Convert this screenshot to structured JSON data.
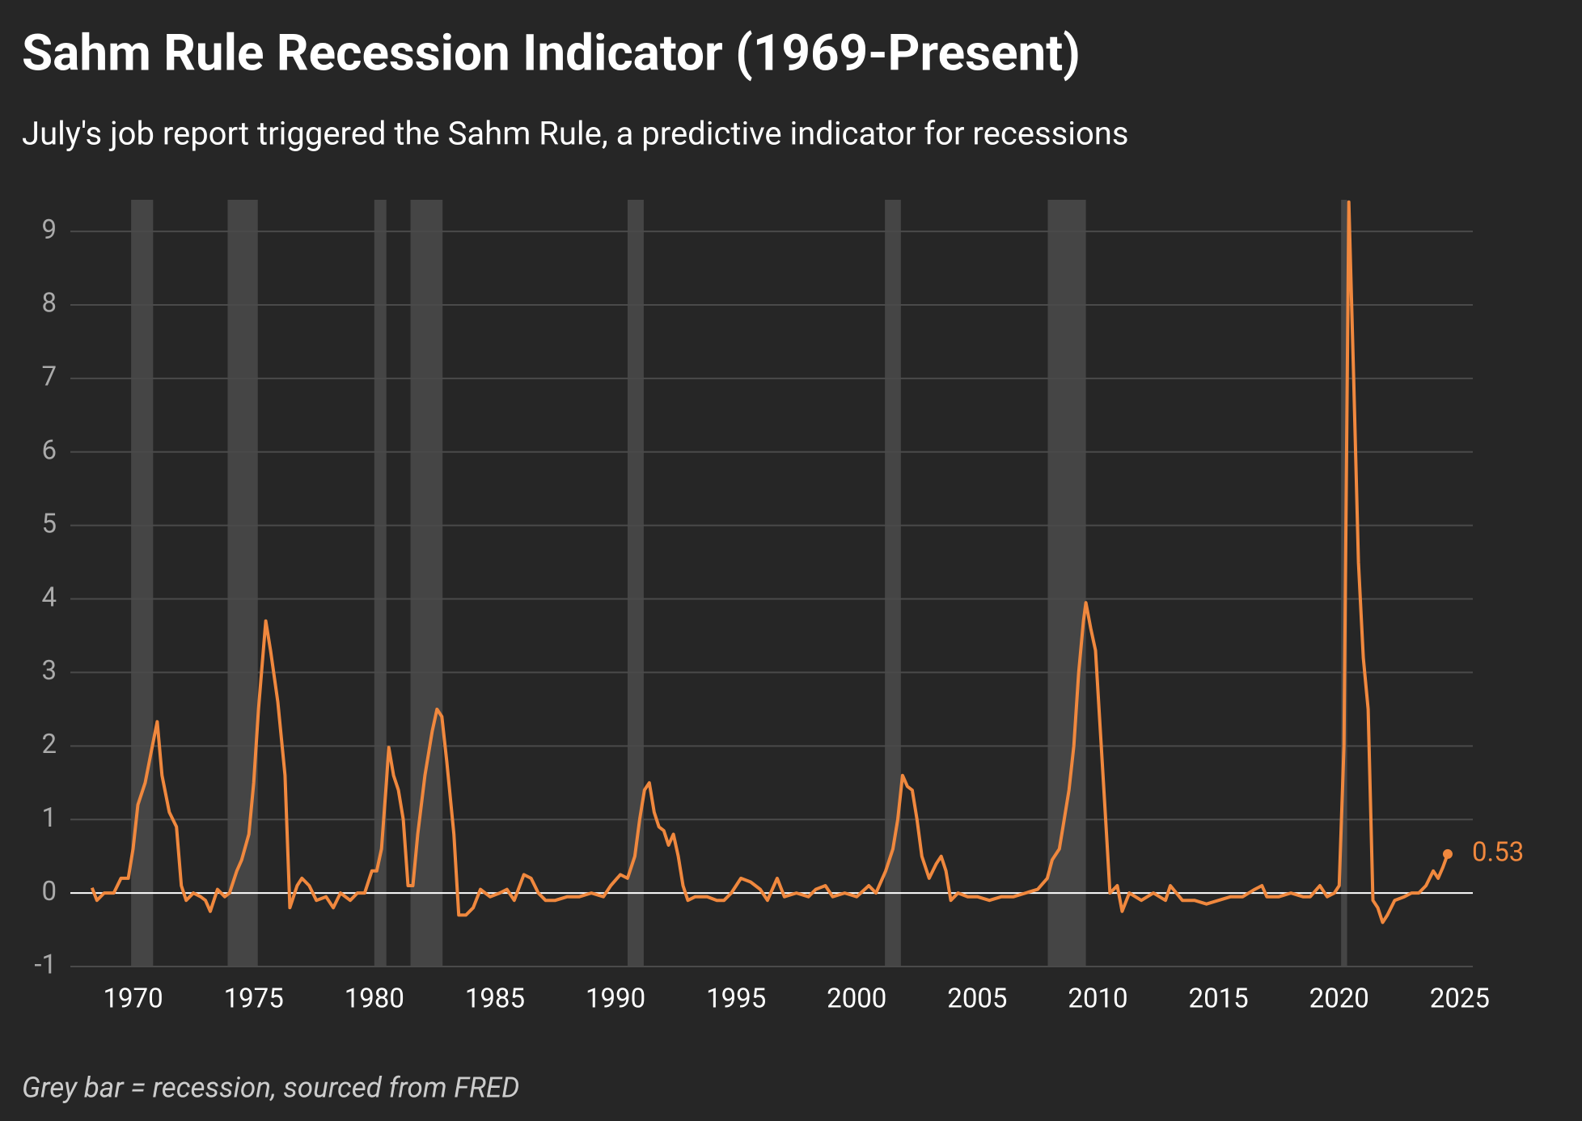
{
  "chart_data": {
    "type": "line",
    "title": "Sahm Rule Recession Indicator (1969-Present)",
    "subtitle": "July's job report triggered the Sahm Rule, a predictive indicator for recessions",
    "note": "Grey bar = recession, sourced from FRED",
    "x": [
      1968.3,
      1968.5,
      1968.8,
      1969.2,
      1969.5,
      1969.8,
      1970.0,
      1970.2,
      1970.5,
      1970.8,
      1971.0,
      1971.2,
      1971.5,
      1971.8,
      1972.0,
      1972.2,
      1972.5,
      1972.8,
      1973.0,
      1973.2,
      1973.5,
      1973.8,
      1974.0,
      1974.3,
      1974.5,
      1974.8,
      1975.0,
      1975.2,
      1975.4,
      1975.5,
      1975.7,
      1976.0,
      1976.3,
      1976.5,
      1976.8,
      1977.0,
      1977.3,
      1977.6,
      1978.0,
      1978.3,
      1978.6,
      1979.0,
      1979.3,
      1979.6,
      1979.9,
      1980.1,
      1980.3,
      1980.5,
      1980.6,
      1980.8,
      1981.0,
      1981.2,
      1981.4,
      1981.6,
      1981.8,
      1982.1,
      1982.4,
      1982.6,
      1982.8,
      1983.0,
      1983.3,
      1983.5,
      1983.8,
      1984.1,
      1984.4,
      1984.8,
      1985.2,
      1985.5,
      1985.8,
      1986.2,
      1986.5,
      1986.8,
      1987.1,
      1987.5,
      1988.0,
      1988.5,
      1989.0,
      1989.5,
      1989.8,
      1990.2,
      1990.5,
      1990.8,
      1991.0,
      1991.2,
      1991.4,
      1991.6,
      1991.8,
      1992.0,
      1992.2,
      1992.4,
      1992.6,
      1992.8,
      1993.0,
      1993.3,
      1993.8,
      1994.2,
      1994.5,
      1994.8,
      1995.2,
      1995.6,
      1996.0,
      1996.3,
      1996.7,
      1997.0,
      1997.5,
      1998.0,
      1998.3,
      1998.7,
      1999.0,
      1999.5,
      2000.0,
      2000.5,
      2000.8,
      2001.2,
      2001.5,
      2001.7,
      2001.9,
      2002.1,
      2002.3,
      2002.5,
      2002.7,
      2003.0,
      2003.3,
      2003.5,
      2003.7,
      2003.9,
      2004.2,
      2004.6,
      2005.0,
      2005.5,
      2006.0,
      2006.5,
      2007.0,
      2007.5,
      2007.9,
      2008.1,
      2008.4,
      2008.6,
      2008.8,
      2009.0,
      2009.2,
      2009.4,
      2009.5,
      2009.7,
      2009.9,
      2010.1,
      2010.3,
      2010.5,
      2010.8,
      2011.0,
      2011.3,
      2011.8,
      2012.3,
      2012.8,
      2013.0,
      2013.5,
      2014.0,
      2014.5,
      2015.0,
      2015.5,
      2016.0,
      2016.5,
      2016.8,
      2017.0,
      2017.5,
      2018.0,
      2018.5,
      2018.8,
      2019.2,
      2019.5,
      2019.8,
      2020.0,
      2020.2,
      2020.4,
      2020.6,
      2020.8,
      2021.0,
      2021.2,
      2021.4,
      2021.6,
      2021.8,
      2022.0,
      2022.3,
      2022.7,
      2023.0,
      2023.3,
      2023.6,
      2023.9,
      2024.1,
      2024.3,
      2024.5
    ],
    "series": [
      {
        "name": "Sahm Rule",
        "color": "#f0883e",
        "values": [
          0.07,
          -0.1,
          0,
          0,
          0.2,
          0.2,
          0.6,
          1.2,
          1.5,
          2.0,
          2.33,
          1.6,
          1.1,
          0.9,
          0.1,
          -0.1,
          0,
          -0.05,
          -0.1,
          -0.25,
          0.05,
          -0.05,
          0,
          0.3,
          0.45,
          0.8,
          1.5,
          2.5,
          3.3,
          3.7,
          3.3,
          2.6,
          1.6,
          -0.2,
          0.1,
          0.2,
          0.1,
          -0.1,
          -0.05,
          -0.2,
          0,
          -0.1,
          0,
          0,
          0.3,
          0.3,
          0.6,
          1.5,
          1.98,
          1.6,
          1.4,
          1.0,
          0.1,
          0.1,
          0.8,
          1.6,
          2.2,
          2.5,
          2.4,
          1.8,
          0.8,
          -0.3,
          -0.3,
          -0.2,
          0.05,
          -0.05,
          0,
          0.05,
          -0.1,
          0.25,
          0.2,
          0,
          -0.1,
          -0.1,
          -0.05,
          -0.05,
          0,
          -0.05,
          0.1,
          0.25,
          0.2,
          0.5,
          1.0,
          1.4,
          1.5,
          1.1,
          0.9,
          0.85,
          0.65,
          0.8,
          0.5,
          0.1,
          -0.1,
          -0.05,
          -0.05,
          -0.1,
          -0.1,
          0,
          0.2,
          0.15,
          0.05,
          -0.1,
          0.2,
          -0.05,
          0,
          -0.05,
          0.05,
          0.1,
          -0.05,
          0,
          -0.05,
          0.1,
          0,
          0.3,
          0.6,
          1.0,
          1.6,
          1.45,
          1.4,
          1.0,
          0.5,
          0.2,
          0.4,
          0.5,
          0.3,
          -0.1,
          0,
          -0.05,
          -0.05,
          -0.1,
          -0.05,
          -0.05,
          0,
          0.05,
          0.2,
          0.45,
          0.6,
          1.0,
          1.4,
          2.0,
          3.0,
          3.7,
          3.95,
          3.6,
          3.3,
          2.2,
          1.1,
          0,
          0.1,
          -0.25,
          0,
          -0.1,
          0,
          -0.1,
          0.1,
          -0.1,
          -0.1,
          -0.15,
          -0.1,
          -0.05,
          -0.05,
          0.05,
          0.1,
          -0.05,
          -0.05,
          0,
          -0.05,
          -0.05,
          0.1,
          -0.05,
          0,
          0.1,
          2.0,
          9.4,
          7.0,
          4.5,
          3.2,
          2.5,
          -0.1,
          -0.2,
          -0.4,
          -0.3,
          -0.1,
          -0.05,
          0,
          0,
          0.1,
          0.3,
          0.2,
          0.35,
          0.53
        ]
      }
    ],
    "recessions": [
      {
        "start": 1969.92,
        "end": 1970.83
      },
      {
        "start": 1973.92,
        "end": 1975.17
      },
      {
        "start": 1980.0,
        "end": 1980.5
      },
      {
        "start": 1981.5,
        "end": 1982.83
      },
      {
        "start": 1990.5,
        "end": 1991.17
      },
      {
        "start": 2001.17,
        "end": 2001.83
      },
      {
        "start": 2007.92,
        "end": 2009.5
      },
      {
        "start": 2020.08,
        "end": 2020.33
      }
    ],
    "xlim": [
      1967.4,
      2025.54
    ],
    "ylim": [
      -1,
      9.43
    ],
    "xticks": [
      1970,
      1975,
      1980,
      1985,
      1990,
      1995,
      2000,
      2005,
      2010,
      2015,
      2020,
      2025
    ],
    "yticks": [
      -1,
      0,
      1,
      2,
      3,
      4,
      5,
      6,
      7,
      8,
      9
    ],
    "grid": true,
    "recession_color": "#454545"
  }
}
